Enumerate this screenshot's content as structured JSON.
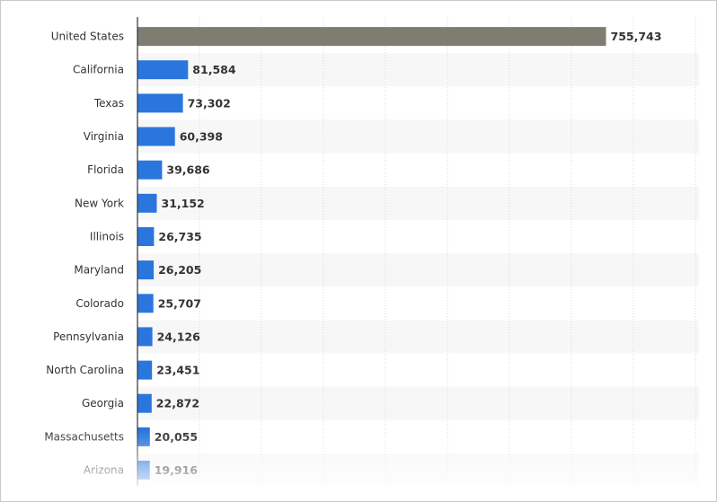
{
  "chart_data": {
    "type": "bar",
    "orientation": "horizontal",
    "categories": [
      "United States",
      "California",
      "Texas",
      "Virginia",
      "Florida",
      "New York",
      "Illinois",
      "Maryland",
      "Colorado",
      "Pennsylvania",
      "North Carolina",
      "Georgia",
      "Massachusetts",
      "Arizona"
    ],
    "values": [
      755743,
      81584,
      73302,
      60398,
      39686,
      31152,
      26735,
      26205,
      25707,
      24126,
      23451,
      22872,
      20055,
      19916
    ],
    "value_labels": [
      "755,743",
      "81,584",
      "73,302",
      "60,398",
      "39,686",
      "31,152",
      "26,735",
      "26,205",
      "25,707",
      "24,126",
      "23,451",
      "22,872",
      "20,055",
      "19,916"
    ],
    "xlim": [
      0,
      900000
    ],
    "grid": true,
    "legend": "none",
    "title": "",
    "xlabel": "",
    "ylabel": ""
  },
  "colors": {
    "highlight_bar": "#7f7c72",
    "bar": "#2a76dd",
    "band": "#f7f7f7",
    "grid": "#d9d9d9",
    "axis": "#333333",
    "text": "#333333"
  }
}
